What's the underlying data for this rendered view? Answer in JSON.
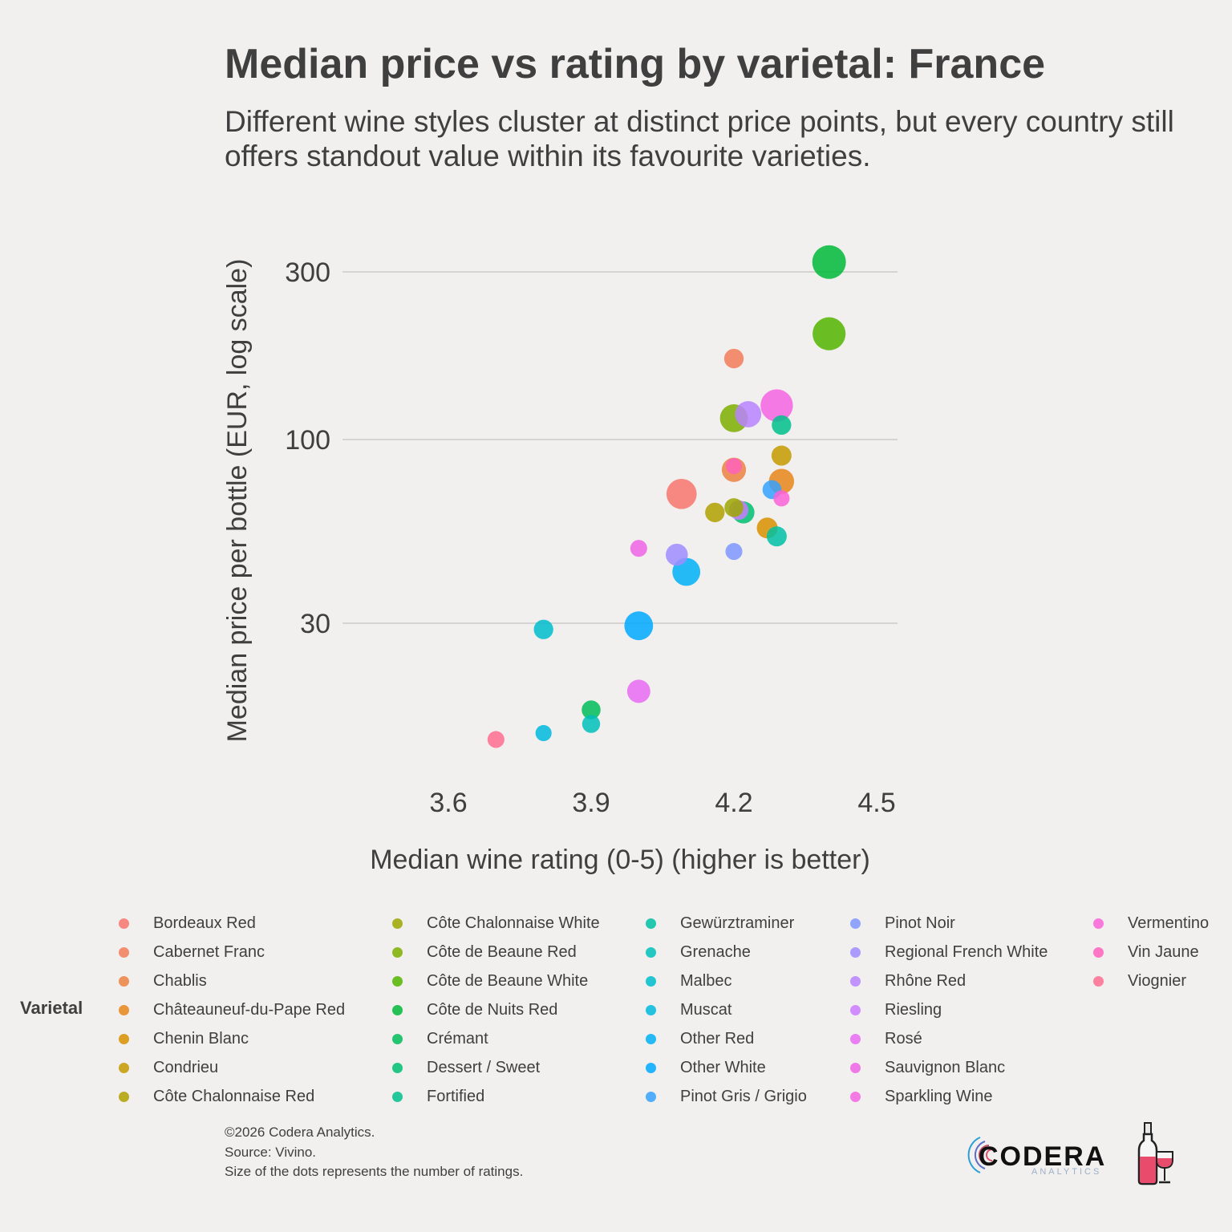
{
  "title": "Median price vs rating by varietal: France",
  "subtitle": "Different wine styles cluster at distinct price points, but every country still offers standout value within its favourite varieties.",
  "caption": [
    "©2026 Codera Analytics.",
    "Source: Vivino.",
    "Size of the dots represents the number of ratings."
  ],
  "logo": {
    "name": "CODERA",
    "tagline": "ANALYTICS"
  },
  "legend_title": "Varietal",
  "chart_data": {
    "type": "scatter",
    "title": "Median price vs rating by varietal: France",
    "xlabel": "Median wine rating (0-5) (higher is better)",
    "ylabel": "Median price per bottle (EUR, log scale)",
    "x_scale": "linear",
    "y_scale": "log",
    "xlim": [
      3.6,
      4.5
    ],
    "ylim": [
      30,
      300
    ],
    "x_ticks": [
      3.6,
      3.9,
      4.2,
      4.5
    ],
    "y_ticks": [
      30,
      100,
      300
    ],
    "x_tick_labels": [
      "3.6",
      "3.9",
      "4.2",
      "4.5"
    ],
    "y_tick_labels": [
      "30",
      "100",
      "300"
    ],
    "grid": "horizontal",
    "legend_position": "bottom",
    "size_meaning": "number of ratings",
    "series": [
      {
        "name": "Bordeaux Red",
        "color": "#F8766D",
        "x": 4.09,
        "y": 70,
        "size": 0.75
      },
      {
        "name": "Cabernet Franc",
        "color": "#F37B59",
        "x": 4.2,
        "y": 170,
        "size": 0.2
      },
      {
        "name": "Chablis",
        "color": "#ED8141",
        "x": 4.2,
        "y": 82,
        "size": 0.4
      },
      {
        "name": "Châteauneuf-du-Pape Red",
        "color": "#E7861B",
        "x": 4.3,
        "y": 76,
        "size": 0.45
      },
      {
        "name": "Chenin Blanc",
        "color": "#D89000",
        "x": 4.27,
        "y": 56,
        "size": 0.25
      },
      {
        "name": "Condrieu",
        "color": "#C49A00",
        "x": 4.3,
        "y": 90,
        "size": 0.22
      },
      {
        "name": "Côte Chalonnaise Red",
        "color": "#B0A100",
        "x": 4.16,
        "y": 62,
        "size": 0.2
      },
      {
        "name": "Côte Chalonnaise White",
        "color": "#9CA700",
        "x": 4.2,
        "y": 64,
        "size": 0.18
      },
      {
        "name": "Côte de Beaune Red",
        "color": "#7CAE00",
        "x": 4.2,
        "y": 115,
        "size": 0.6
      },
      {
        "name": "Côte de Beaune White",
        "color": "#53B400",
        "x": 4.4,
        "y": 200,
        "size": 0.95
      },
      {
        "name": "Côte de Nuits Red",
        "color": "#00BA38",
        "x": 4.4,
        "y": 320,
        "size": 1.0
      },
      {
        "name": "Crémant",
        "color": "#00BC59",
        "x": 3.9,
        "y": 17,
        "size": 0.18
      },
      {
        "name": "Dessert / Sweet",
        "color": "#00BE70",
        "x": 4.22,
        "y": 62,
        "size": 0.3
      },
      {
        "name": "Fortified",
        "color": "#00C08B",
        "x": 4.3,
        "y": 110,
        "size": 0.2
      },
      {
        "name": "Gewürztraminer",
        "color": "#00C0A3",
        "x": 4.29,
        "y": 53,
        "size": 0.22
      },
      {
        "name": "Grenache",
        "color": "#00C0B8",
        "x": 3.9,
        "y": 15.5,
        "size": 0.15
      },
      {
        "name": "Malbec",
        "color": "#00BDCC",
        "x": 3.8,
        "y": 28.8,
        "size": 0.2
      },
      {
        "name": "Muscat",
        "color": "#00B8DE",
        "x": 3.8,
        "y": 14.6,
        "size": 0.1
      },
      {
        "name": "Other Red",
        "color": "#00B0F6",
        "x": 4.1,
        "y": 42,
        "size": 0.6
      },
      {
        "name": "Other White",
        "color": "#00A9FF",
        "x": 4.0,
        "y": 29.5,
        "size": 0.65
      },
      {
        "name": "Pinot Gris / Grigio",
        "color": "#35A2FF",
        "x": 4.28,
        "y": 72,
        "size": 0.18
      },
      {
        "name": "Pinot Noir",
        "color": "#7F96FF",
        "x": 4.2,
        "y": 48,
        "size": 0.12
      },
      {
        "name": "Regional French White",
        "color": "#9E8CFF",
        "x": 4.08,
        "y": 47,
        "size": 0.3
      },
      {
        "name": "Rhône Red",
        "color": "#B983FF",
        "x": 4.23,
        "y": 118,
        "size": 0.5
      },
      {
        "name": "Riesling",
        "color": "#CB7BFF",
        "x": 4.21,
        "y": 63,
        "size": 0.2
      },
      {
        "name": "Rosé",
        "color": "#E76BF3",
        "x": 4.0,
        "y": 19.2,
        "size": 0.35
      },
      {
        "name": "Sauvignon Blanc",
        "color": "#EE65E5",
        "x": 4.0,
        "y": 49,
        "size": 0.12
      },
      {
        "name": "Sparkling Wine",
        "color": "#F564E3",
        "x": 4.29,
        "y": 125,
        "size": 0.9
      },
      {
        "name": "Vermentino",
        "color": "#FB61D7",
        "x": 4.3,
        "y": 68,
        "size": 0.1
      },
      {
        "name": "Vin Jaune",
        "color": "#FF62BC",
        "x": 4.2,
        "y": 84,
        "size": 0.1
      },
      {
        "name": "Viognier",
        "color": "#FF6C91",
        "x": 3.7,
        "y": 14.0,
        "size": 0.12
      }
    ]
  }
}
